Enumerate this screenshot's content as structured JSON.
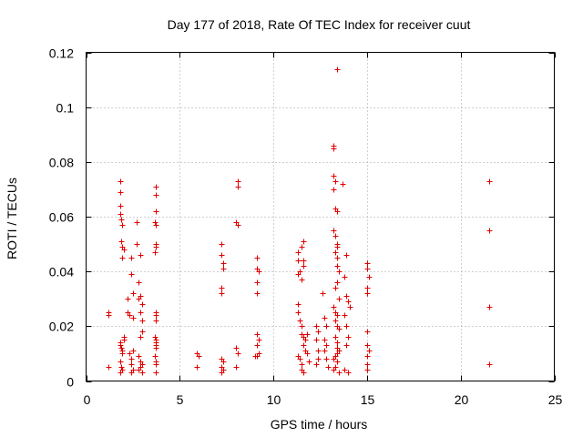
{
  "chart_data": {
    "type": "scatter",
    "title": "Day 177 of 2018, Rate Of TEC Index for receiver cuut",
    "xlabel": "GPS time / hours",
    "ylabel": "ROTI / TECUs",
    "xlim": [
      0,
      25
    ],
    "ylim": [
      0,
      0.12
    ],
    "xticks": [
      0,
      5,
      10,
      15,
      20,
      25
    ],
    "xtick_labels": [
      "0",
      "5",
      "10",
      "15",
      "20",
      "25"
    ],
    "yticks": [
      0,
      0.02,
      0.04,
      0.06,
      0.08,
      0.1,
      0.12
    ],
    "ytick_labels": [
      "0",
      "0.02",
      "0.04",
      "0.06",
      "0.08",
      "0.1",
      "0.12"
    ],
    "grid": true,
    "marker": "plus",
    "marker_color": "#e00000",
    "points": [
      [
        1.2,
        0.024
      ],
      [
        1.2,
        0.025
      ],
      [
        1.2,
        0.005
      ],
      [
        1.8,
        0.073
      ],
      [
        1.8,
        0.069
      ],
      [
        1.8,
        0.064
      ],
      [
        1.8,
        0.061
      ],
      [
        1.85,
        0.059
      ],
      [
        1.9,
        0.057
      ],
      [
        1.85,
        0.051
      ],
      [
        1.9,
        0.049
      ],
      [
        2.0,
        0.048
      ],
      [
        1.9,
        0.045
      ],
      [
        1.8,
        0.014
      ],
      [
        1.8,
        0.013
      ],
      [
        1.85,
        0.012
      ],
      [
        1.9,
        0.01
      ],
      [
        1.8,
        0.007
      ],
      [
        1.85,
        0.005
      ],
      [
        1.9,
        0.004
      ],
      [
        1.8,
        0.003
      ],
      [
        2.0,
        0.016
      ],
      [
        2.0,
        0.015
      ],
      [
        1.9,
        0.011
      ],
      [
        2.2,
        0.03
      ],
      [
        2.2,
        0.025
      ],
      [
        2.3,
        0.024
      ],
      [
        2.4,
        0.045
      ],
      [
        2.4,
        0.039
      ],
      [
        2.5,
        0.032
      ],
      [
        2.5,
        0.023
      ],
      [
        2.3,
        0.01
      ],
      [
        2.4,
        0.008
      ],
      [
        2.4,
        0.006
      ],
      [
        2.5,
        0.004
      ],
      [
        2.4,
        0.003
      ],
      [
        2.5,
        0.011
      ],
      [
        2.7,
        0.058
      ],
      [
        2.7,
        0.05
      ],
      [
        2.9,
        0.046
      ],
      [
        2.8,
        0.036
      ],
      [
        2.9,
        0.031
      ],
      [
        2.8,
        0.03
      ],
      [
        3.0,
        0.028
      ],
      [
        2.9,
        0.025
      ],
      [
        3.0,
        0.022
      ],
      [
        3.0,
        0.018
      ],
      [
        2.9,
        0.016
      ],
      [
        2.8,
        0.009
      ],
      [
        2.9,
        0.007
      ],
      [
        3.0,
        0.006
      ],
      [
        2.8,
        0.004
      ],
      [
        3.0,
        0.003
      ],
      [
        2.9,
        0.005
      ],
      [
        3.7,
        0.071
      ],
      [
        3.7,
        0.068
      ],
      [
        3.7,
        0.062
      ],
      [
        3.65,
        0.058
      ],
      [
        3.7,
        0.057
      ],
      [
        3.7,
        0.05
      ],
      [
        3.7,
        0.049
      ],
      [
        3.65,
        0.047
      ],
      [
        3.7,
        0.025
      ],
      [
        3.7,
        0.024
      ],
      [
        3.7,
        0.022
      ],
      [
        3.65,
        0.016
      ],
      [
        3.7,
        0.015
      ],
      [
        3.7,
        0.014
      ],
      [
        3.7,
        0.013
      ],
      [
        3.7,
        0.012
      ],
      [
        3.65,
        0.009
      ],
      [
        3.7,
        0.007
      ],
      [
        3.7,
        0.006
      ],
      [
        3.7,
        0.003
      ],
      [
        5.9,
        0.01
      ],
      [
        6.0,
        0.009
      ],
      [
        5.9,
        0.005
      ],
      [
        7.2,
        0.05
      ],
      [
        7.2,
        0.046
      ],
      [
        7.3,
        0.043
      ],
      [
        7.3,
        0.041
      ],
      [
        7.2,
        0.034
      ],
      [
        7.2,
        0.032
      ],
      [
        7.2,
        0.008
      ],
      [
        7.3,
        0.007
      ],
      [
        7.2,
        0.005
      ],
      [
        7.3,
        0.004
      ],
      [
        7.2,
        0.003
      ],
      [
        8.1,
        0.073
      ],
      [
        8.1,
        0.071
      ],
      [
        8.0,
        0.058
      ],
      [
        8.1,
        0.057
      ],
      [
        8.0,
        0.012
      ],
      [
        8.1,
        0.01
      ],
      [
        8.0,
        0.005
      ],
      [
        9.1,
        0.045
      ],
      [
        9.1,
        0.041
      ],
      [
        9.2,
        0.04
      ],
      [
        9.1,
        0.036
      ],
      [
        9.1,
        0.032
      ],
      [
        9.1,
        0.017
      ],
      [
        9.2,
        0.015
      ],
      [
        9.1,
        0.013
      ],
      [
        9.2,
        0.01
      ],
      [
        9.1,
        0.009
      ],
      [
        9.0,
        0.009
      ],
      [
        11.3,
        0.047
      ],
      [
        11.3,
        0.044
      ],
      [
        11.4,
        0.04
      ],
      [
        11.3,
        0.039
      ],
      [
        11.5,
        0.037
      ],
      [
        11.6,
        0.051
      ],
      [
        11.5,
        0.049
      ],
      [
        11.6,
        0.044
      ],
      [
        11.6,
        0.042
      ],
      [
        11.3,
        0.028
      ],
      [
        11.3,
        0.025
      ],
      [
        11.4,
        0.022
      ],
      [
        11.5,
        0.02
      ],
      [
        11.5,
        0.017
      ],
      [
        11.6,
        0.016
      ],
      [
        11.7,
        0.015
      ],
      [
        11.6,
        0.013
      ],
      [
        11.7,
        0.011
      ],
      [
        11.3,
        0.009
      ],
      [
        11.4,
        0.008
      ],
      [
        11.5,
        0.006
      ],
      [
        11.5,
        0.004
      ],
      [
        11.6,
        0.003
      ],
      [
        11.8,
        0.017
      ],
      [
        11.8,
        0.01
      ],
      [
        11.9,
        0.007
      ],
      [
        12.3,
        0.02
      ],
      [
        12.4,
        0.018
      ],
      [
        12.3,
        0.015
      ],
      [
        12.4,
        0.011
      ],
      [
        12.4,
        0.008
      ],
      [
        12.3,
        0.006
      ],
      [
        12.6,
        0.032
      ],
      [
        12.7,
        0.023
      ],
      [
        12.8,
        0.02
      ],
      [
        12.7,
        0.015
      ],
      [
        12.8,
        0.013
      ],
      [
        12.7,
        0.011
      ],
      [
        12.8,
        0.008
      ],
      [
        12.9,
        0.005
      ],
      [
        13.2,
        0.086
      ],
      [
        13.2,
        0.085
      ],
      [
        13.2,
        0.075
      ],
      [
        13.3,
        0.073
      ],
      [
        13.2,
        0.07
      ],
      [
        13.3,
        0.063
      ],
      [
        13.4,
        0.062
      ],
      [
        13.2,
        0.055
      ],
      [
        13.3,
        0.053
      ],
      [
        13.4,
        0.05
      ],
      [
        13.4,
        0.049
      ],
      [
        13.3,
        0.047
      ],
      [
        13.4,
        0.045
      ],
      [
        13.4,
        0.042
      ],
      [
        13.5,
        0.04
      ],
      [
        13.4,
        0.036
      ],
      [
        13.3,
        0.034
      ],
      [
        13.5,
        0.03
      ],
      [
        13.2,
        0.027
      ],
      [
        13.3,
        0.025
      ],
      [
        13.4,
        0.024
      ],
      [
        13.3,
        0.022
      ],
      [
        13.4,
        0.02
      ],
      [
        13.5,
        0.019
      ],
      [
        13.3,
        0.016
      ],
      [
        13.4,
        0.014
      ],
      [
        13.4,
        0.012
      ],
      [
        13.5,
        0.011
      ],
      [
        13.4,
        0.01
      ],
      [
        13.3,
        0.009
      ],
      [
        13.2,
        0.008
      ],
      [
        13.4,
        0.007
      ],
      [
        13.3,
        0.005
      ],
      [
        13.2,
        0.004
      ],
      [
        13.5,
        0.003
      ],
      [
        13.4,
        0.114
      ],
      [
        13.7,
        0.072
      ],
      [
        13.9,
        0.046
      ],
      [
        13.8,
        0.038
      ],
      [
        13.9,
        0.031
      ],
      [
        14.0,
        0.029
      ],
      [
        14.1,
        0.027
      ],
      [
        13.8,
        0.024
      ],
      [
        13.9,
        0.02
      ],
      [
        14.0,
        0.016
      ],
      [
        13.9,
        0.013
      ],
      [
        13.8,
        0.004
      ],
      [
        14.0,
        0.003
      ],
      [
        15.0,
        0.043
      ],
      [
        15.0,
        0.041
      ],
      [
        15.1,
        0.038
      ],
      [
        15.0,
        0.034
      ],
      [
        15.0,
        0.032
      ],
      [
        15.0,
        0.018
      ],
      [
        15.0,
        0.013
      ],
      [
        15.1,
        0.011
      ],
      [
        15.0,
        0.009
      ],
      [
        15.0,
        0.006
      ],
      [
        15.0,
        0.004
      ],
      [
        21.5,
        0.073
      ],
      [
        21.5,
        0.055
      ],
      [
        21.5,
        0.027
      ],
      [
        21.5,
        0.006
      ]
    ]
  }
}
